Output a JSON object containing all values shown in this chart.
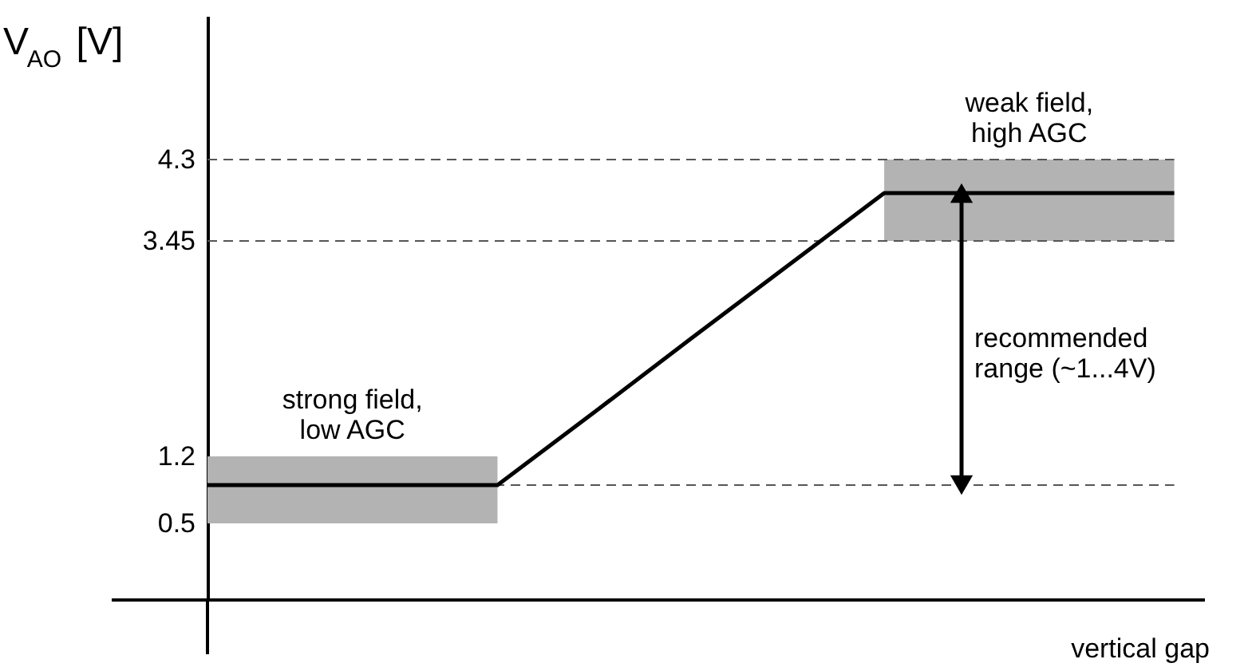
{
  "chart_data": {
    "type": "line",
    "ylabel": "V$_{AO}$ [V]",
    "xlabel": "vertical gap",
    "categories": [
      null,
      null,
      null,
      null,
      null,
      null,
      null,
      null,
      null,
      null,
      null
    ],
    "series": [
      {
        "color": "#000000",
        "values": [
          0.9,
          0.9,
          0.9,
          0.9,
          1.66,
          2.43,
          3.19,
          3.95,
          3.95,
          3.95,
          3.95
        ]
      }
    ],
    "ylim": [
      -0.3,
      5.8
    ],
    "yticks": [
      0.5,
      1.2,
      3.45,
      4.3
    ],
    "tick_labels": "y",
    "line_style": "solid",
    "ref_lines": [
      {
        "axis": "y",
        "value": 4.3,
        "color": "#555555",
        "line_style": "dashed"
      },
      {
        "axis": "y",
        "value": 3.45,
        "color": "#555555",
        "line_style": "dashed"
      },
      {
        "axis": "y",
        "value": 0.9,
        "color": "#555555",
        "line_style": "dashed"
      }
    ],
    "bands": [
      {
        "axis": "y",
        "from": 0.5,
        "to": 1.2,
        "color": "#b3b3b3"
      },
      {
        "axis": "y",
        "from": 3.45,
        "to": 4.3,
        "color": "#b3b3b3"
      }
    ],
    "annotations": [
      "strong field,\nlow AGC",
      "weak field,\nhigh AGC",
      "recommended\nrange (~1...4V)"
    ]
  }
}
